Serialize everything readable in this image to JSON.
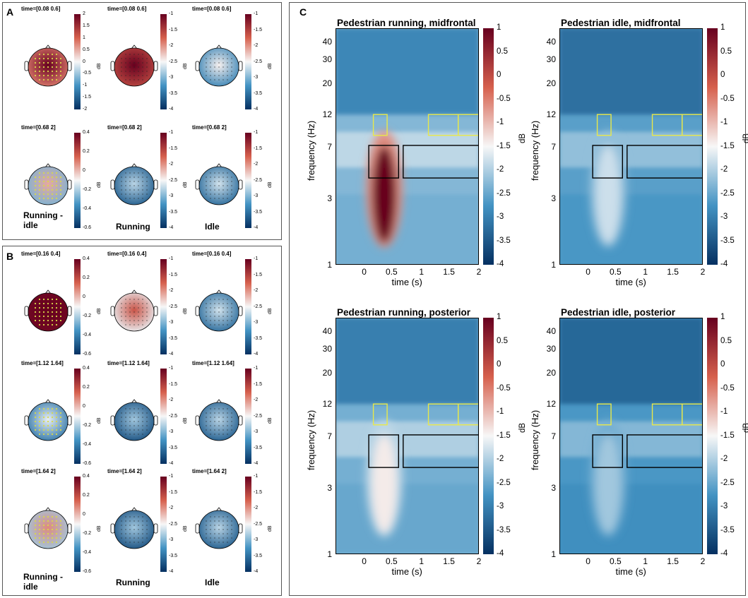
{
  "panels": {
    "A": "A",
    "B": "B",
    "C": "C"
  },
  "colors": {
    "dark_red": "#67001f",
    "red": "#d6604d",
    "white": "#f7f7f7",
    "blue": "#4393c3",
    "dark_blue": "#053061",
    "yellow_window": "#e8e84a",
    "black_window": "#000000"
  },
  "condition_labels": {
    "diff": "Running -\nidle",
    "running": "Running",
    "idle": "Idle"
  },
  "topo_scales": {
    "diff_A1": [
      "2",
      "1.5",
      "1",
      "0.5",
      "0",
      "-0.5",
      "-1",
      "-1.5",
      "-2"
    ],
    "diff_small": [
      "0.4",
      "0.2",
      "0",
      "-0.2",
      "-0.4",
      "-0.6"
    ],
    "abs": [
      "-1",
      "-1.5",
      "-2",
      "-2.5",
      "-3",
      "-3.5",
      "-4"
    ],
    "unit": "dB"
  },
  "topo_rows": [
    {
      "time": "time=[0.08 0.6]",
      "diff_scale": "diff_A1",
      "values": {
        "diff": 1.3,
        "running": -1.2,
        "idle": -3.0
      }
    },
    {
      "time": "time=[0.68 2]",
      "diff_scale": "diff_small",
      "values": {
        "diff": -0.15,
        "running": -3.3,
        "idle": -3.2
      }
    },
    {
      "time": "time=[0.16 0.4]",
      "diff_scale": "diff_small",
      "values": {
        "diff": 0.5,
        "running": -2.2,
        "idle": -3.2
      }
    },
    {
      "time": "time=[1.12 1.64]",
      "diff_scale": "diff_small",
      "values": {
        "diff": -0.3,
        "running": -3.4,
        "idle": -3.3
      }
    },
    {
      "time": "time=[1.64 2]",
      "diff_scale": "diff_small",
      "values": {
        "diff": -0.1,
        "running": -3.4,
        "idle": -3.3
      }
    }
  ],
  "chart_data": {
    "type": "heatmap",
    "xlabel": "time (s)",
    "ylabel": "frequency (Hz)",
    "xlim": [
      -0.5,
      2
    ],
    "ylim_hz": [
      1,
      50
    ],
    "yscale": "log",
    "xticks": [
      "0",
      "0.5",
      "1",
      "1.5",
      "2"
    ],
    "yticks": [
      "1",
      "3",
      "7",
      "12",
      "20",
      "30",
      "40"
    ],
    "colorbar": {
      "label": "dB",
      "range": [
        -4,
        1
      ],
      "ticks": [
        "1",
        "0.5",
        "0",
        "-0.5",
        "-1",
        "-1.5",
        "-2",
        "-2.5",
        "-3",
        "-3.5",
        "-4"
      ]
    },
    "windows_yellow": [
      [
        0.16,
        0.4,
        8.5,
        12
      ],
      [
        1.12,
        1.64,
        8.5,
        12
      ],
      [
        1.64,
        2,
        8.5,
        12
      ]
    ],
    "windows_black": [
      [
        0.08,
        0.6,
        4.2,
        7.2
      ],
      [
        0.68,
        2,
        4.2,
        7.2
      ]
    ],
    "plots": [
      {
        "title": "Pedestrian running, midfrontal",
        "base": -2.3,
        "peak": 1.0
      },
      {
        "title": "Pedestrian idle, midfrontal",
        "base": -2.6,
        "peak": -1.8
      },
      {
        "title": "Pedestrian running, posterior",
        "base": -2.4,
        "peak": -1.4
      },
      {
        "title": "Pedestrian idle, posterior",
        "base": -2.7,
        "peak": -2.1
      }
    ]
  }
}
